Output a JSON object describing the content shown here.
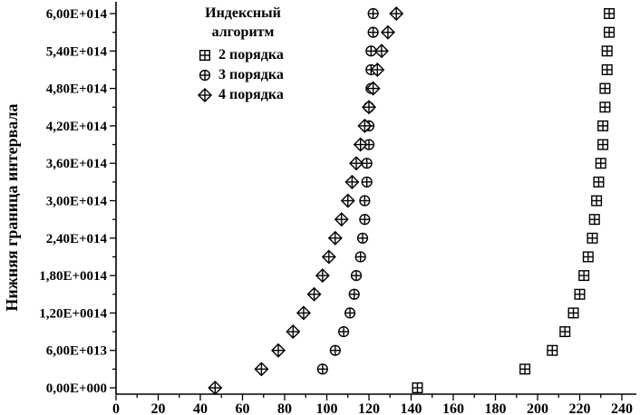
{
  "chart_data": {
    "type": "scatter",
    "title": "",
    "xlabel": "",
    "ylabel": "Нижняя граница интервала",
    "legend_title_1": "Индексный",
    "legend_title_2": "алгоритм",
    "legend_position": "top-left-inside",
    "grid": false,
    "axis_color": "#000000",
    "marker_color": "#000000",
    "xlim": [
      0,
      240
    ],
    "ylim": [
      0,
      600000000000000.0
    ],
    "x_tick_step": 20,
    "x_minor_tick_step": 10,
    "y_tick_step": 60000000000000.0,
    "y_minor_tick_step": 30000000000000.0,
    "x_tick_labels": [
      "0",
      "20",
      "40",
      "60",
      "80",
      "100",
      "120",
      "140",
      "160",
      "180",
      "200",
      "220",
      "240"
    ],
    "y_tick_labels": [
      "0,00E+000",
      "6,00E+013",
      "1,20E+0014",
      "1,80E+0014",
      "2,40E+014",
      "3,00E+014",
      "3,60E+014",
      "4,20E+014",
      "4,80E+014",
      "5,40E+014",
      "6,00E+014"
    ],
    "y_units_note": "y values below are in units of 1e13 (lower interval bound)",
    "series": [
      {
        "name": "2 порядка",
        "marker": "square-plus",
        "points": [
          [
            143,
            0
          ],
          [
            194,
            3
          ],
          [
            207,
            6
          ],
          [
            213,
            9
          ],
          [
            217,
            12
          ],
          [
            220,
            15
          ],
          [
            222,
            18
          ],
          [
            224,
            21
          ],
          [
            226,
            24
          ],
          [
            227,
            27
          ],
          [
            228,
            30
          ],
          [
            229,
            33
          ],
          [
            230,
            36
          ],
          [
            231,
            39
          ],
          [
            231,
            42
          ],
          [
            232,
            45
          ],
          [
            232,
            48
          ],
          [
            233,
            51
          ],
          [
            233,
            54
          ],
          [
            234,
            57
          ],
          [
            234,
            60
          ]
        ]
      },
      {
        "name": "3 порядка",
        "marker": "circle-plus",
        "points": [
          [
            98,
            3
          ],
          [
            104,
            6
          ],
          [
            108,
            9
          ],
          [
            111,
            12
          ],
          [
            113,
            15
          ],
          [
            114,
            18
          ],
          [
            116,
            21
          ],
          [
            117,
            24
          ],
          [
            118,
            27
          ],
          [
            118,
            30
          ],
          [
            119,
            33
          ],
          [
            119,
            36
          ],
          [
            120,
            39
          ],
          [
            120,
            42
          ],
          [
            120,
            45
          ],
          [
            121,
            48
          ],
          [
            121,
            51
          ],
          [
            121,
            54
          ],
          [
            122,
            57
          ],
          [
            122,
            60
          ]
        ]
      },
      {
        "name": "4 порядка",
        "marker": "diamond-plus",
        "points": [
          [
            47,
            0
          ],
          [
            69,
            3
          ],
          [
            77,
            6
          ],
          [
            84,
            9
          ],
          [
            89,
            12
          ],
          [
            94,
            15
          ],
          [
            98,
            18
          ],
          [
            101,
            21
          ],
          [
            104,
            24
          ],
          [
            107,
            27
          ],
          [
            110,
            30
          ],
          [
            112,
            33
          ],
          [
            114,
            36
          ],
          [
            116,
            39
          ],
          [
            118,
            42
          ],
          [
            120,
            45
          ],
          [
            122,
            48
          ],
          [
            124,
            51
          ],
          [
            126,
            54
          ],
          [
            129,
            57
          ],
          [
            133,
            60
          ]
        ]
      }
    ]
  }
}
